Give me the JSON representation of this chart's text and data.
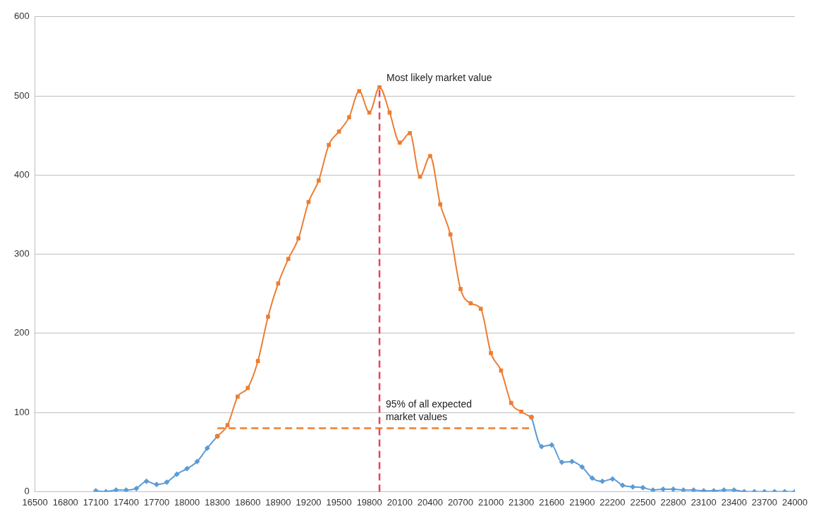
{
  "chart_data": {
    "type": "line",
    "x": [
      17100,
      17200,
      17300,
      17400,
      17500,
      17600,
      17700,
      17800,
      17900,
      18000,
      18100,
      18200,
      18300,
      18400,
      18500,
      18600,
      18700,
      18800,
      18900,
      19000,
      19100,
      19200,
      19300,
      19400,
      19500,
      19600,
      19700,
      19800,
      19900,
      20000,
      20100,
      20200,
      20300,
      20400,
      20500,
      20600,
      20700,
      20800,
      20900,
      21000,
      21100,
      21200,
      21300,
      21400,
      21500,
      21600,
      21700,
      21800,
      21900,
      22000,
      22100,
      22200,
      22300,
      22400,
      22500,
      22600,
      22700,
      22800,
      22900,
      23000,
      23100,
      23200,
      23300,
      23400,
      23500,
      23600,
      23700,
      23800,
      23900,
      24000
    ],
    "series": [
      {
        "color": "#5b9bd5",
        "marker": "diamond",
        "values": [
          1,
          0,
          2,
          2,
          4,
          13,
          9,
          12,
          22,
          29,
          38,
          55,
          70,
          null,
          null,
          null,
          null,
          null,
          null,
          null,
          null,
          null,
          null,
          null,
          null,
          null,
          null,
          null,
          null,
          null,
          null,
          null,
          null,
          null,
          null,
          null,
          null,
          null,
          null,
          null,
          null,
          null,
          null,
          94,
          57,
          59,
          37,
          38,
          31,
          17,
          13,
          16,
          8,
          6,
          5,
          2,
          3,
          3,
          2,
          2,
          1,
          1,
          2,
          2,
          0,
          0,
          0,
          0,
          0,
          0
        ]
      },
      {
        "color": "#ed7d31",
        "marker": "square",
        "values": [
          null,
          null,
          null,
          null,
          null,
          null,
          null,
          null,
          null,
          null,
          null,
          null,
          70,
          84,
          120,
          131,
          165,
          221,
          263,
          294,
          320,
          366,
          393,
          438,
          455,
          473,
          506,
          479,
          511,
          479,
          441,
          453,
          398,
          424,
          363,
          325,
          256,
          238,
          231,
          175,
          153,
          112,
          101,
          94,
          null,
          null,
          null,
          null,
          null,
          null,
          null,
          null,
          null,
          null,
          null,
          null,
          null,
          null,
          null,
          null,
          null,
          null,
          null,
          null,
          null,
          null,
          null,
          null,
          null,
          null
        ]
      }
    ],
    "xlim": [
      16500,
      24000
    ],
    "xticks": [
      16500,
      16800,
      17100,
      17400,
      17700,
      18000,
      18300,
      18600,
      18900,
      19200,
      19500,
      19800,
      20100,
      20400,
      20700,
      21000,
      21300,
      21600,
      21900,
      22200,
      22500,
      22800,
      23100,
      23400,
      23700,
      24000
    ],
    "ylim": [
      0,
      600
    ],
    "yticks": [
      0,
      100,
      200,
      300,
      400,
      500,
      600
    ],
    "grid": "y",
    "legend": false,
    "line_style": "solid",
    "ref_lines": [
      {
        "axis": "x",
        "value": 19900,
        "label": "Most likely market value",
        "color": "#e8435a",
        "line_style": "dashed"
      },
      {
        "axis": "y",
        "value": 80,
        "label": "95% of all expected market values",
        "color": "#ed7d31",
        "line_style": "dashed"
      }
    ]
  }
}
